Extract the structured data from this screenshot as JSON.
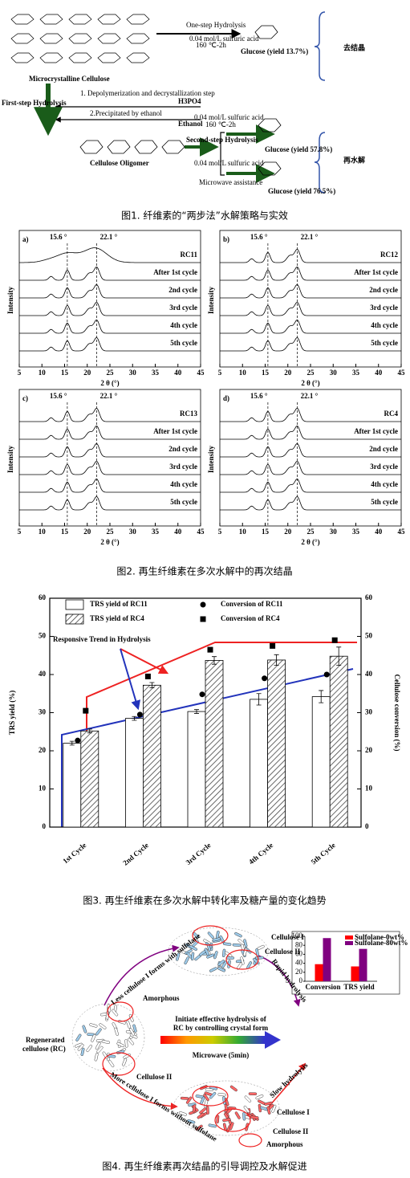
{
  "figure1": {
    "one_step": "One-step Hydrolysis",
    "cond1": "0.04 mol/L sulfuric acid",
    "temp1": "160 ℃-2h",
    "glucose1": "Glucose (yield 13.7%)",
    "tag1": "去结晶",
    "mcc": "Microcrystalline Cellulose",
    "step1": "1. Depolymerization and decrystallization step",
    "h3po4": "H3PO4",
    "step2": "2.Precipitated by ethanol",
    "ethanol": "Ethanol",
    "first_step": "First-step Hydrolysis",
    "oligomer": "Cellulose Oligomer",
    "second_step": "Second-step Hydrolysis",
    "cond2": "0.04 mol/L sulfuric acid",
    "temp2": "160 ℃-2h",
    "glucose2": "Glucose (yield 57.8%)",
    "cond3": "0.04 mol/L sulfuric acid",
    "microwave": "Microwave assistance",
    "glucose3": "Glucose (yield 76.5%)",
    "tag2": "再水解",
    "caption": "图1. 纤维素的“两步法”水解策略与实效"
  },
  "figure2": {
    "xlabel": "2 θ (°)",
    "ylabel": "Intensity",
    "xlim": [
      5,
      45
    ],
    "xticks": [
      5,
      10,
      15,
      20,
      25,
      30,
      35,
      40,
      45
    ],
    "peaks": [
      {
        "value": 15.6,
        "label": "15.6 °"
      },
      {
        "value": 22.1,
        "label": "22.1 °"
      }
    ],
    "panels": [
      {
        "label": "a)",
        "samples": [
          "RC11",
          "After 1st cycle",
          "2nd cycle",
          "3rd cycle",
          "4th cycle",
          "5th cycle"
        ]
      },
      {
        "label": "b)",
        "samples": [
          "RC12",
          "After 1st cycle",
          "2nd cycle",
          "3rd cycle",
          "4th cycle",
          "5th cycle"
        ]
      },
      {
        "label": "c)",
        "samples": [
          "RC13",
          "After 1st cycle",
          "2nd cycle",
          "3rd cycle",
          "4th cycle",
          "5th cycle"
        ]
      },
      {
        "label": "d)",
        "samples": [
          "RC4",
          "After 1st cycle",
          "2nd cycle",
          "3rd cycle",
          "4th cycle",
          "5th cycle"
        ]
      }
    ],
    "caption": "图2. 再生纤维素在多次水解中的再次结晶"
  },
  "chart_data": [
    {
      "type": "bar",
      "annotation": "Responsive Trend in Hydrolysis",
      "ylabel": "TRS yield (%)",
      "y2label": "Cellulose conversion (%)",
      "categories": [
        "1st Cycle",
        "2nd Cycle",
        "3rd Cycle",
        "4th Cycle",
        "5th Cycle"
      ],
      "series": [
        {
          "name": "TRS yield of RC11",
          "color": "#ffffff",
          "values": [
            22,
            28.5,
            30.3,
            33.5,
            34.2
          ],
          "errors": [
            0.5,
            0.5,
            0.5,
            1.5,
            1.6
          ]
        },
        {
          "name": "TRS yield of RC4",
          "color": "#888888",
          "values": [
            25.2,
            37.2,
            43.7,
            43.8,
            44.8
          ],
          "errors": [
            0.5,
            0.7,
            1,
            1.4,
            2.4
          ]
        },
        {
          "name": "Conversion of RC11",
          "color": "#000000",
          "marker": "circle",
          "axis": "y2",
          "values": [
            22.7,
            29.5,
            34.8,
            39,
            40
          ]
        },
        {
          "name": "Conversion of RC4",
          "color": "#000000",
          "marker": "square",
          "axis": "y2",
          "values": [
            30.5,
            39.5,
            46.5,
            47.5,
            49
          ]
        }
      ],
      "ylim": [
        0,
        60
      ],
      "yticks": [
        0,
        10,
        20,
        30,
        40,
        50,
        60
      ],
      "y2lim": [
        0,
        60
      ],
      "y2ticks": [
        0,
        10,
        20,
        30,
        40,
        50,
        60
      ]
    },
    {
      "type": "bar",
      "categories": [
        "Conversion",
        "TRS yield"
      ],
      "series": [
        {
          "name": "Sulfolane-0wt%",
          "color": "#ff0000",
          "values": [
            38,
            33
          ]
        },
        {
          "name": "Sulfolane-80wt%",
          "color": "#800080",
          "values": [
            96,
            72
          ]
        }
      ],
      "ylim": [
        0,
        100
      ],
      "yticks": [
        0,
        20,
        40,
        60,
        80,
        100
      ]
    }
  ],
  "figure3": {
    "caption": "图3. 再生纤维素在多次水解中转化率及糖产量的变化趋势"
  },
  "figure4": {
    "cellulose_i_top": "Cellulose I",
    "cellulose_ii_top": "Cellulose II",
    "less": "Less cellulose I forms with sulfolane",
    "rapid": "Rapid hydrolysis",
    "amorphous_left": "Amorphous",
    "rc": [
      "Regenerated",
      "cellulose (RC)"
    ],
    "initiate": [
      "Initiate effective hydrolysis of",
      "RC by controlling crystal form"
    ],
    "microwave": "Microwave (5min)",
    "cellulose_ii_left": "Cellulose II",
    "more": "More cellulose I forms without sulfolane",
    "slow": "Slow hydrolysis",
    "cellulose_i_bottom": "Cellulose I",
    "cellulose_ii_bottom": "Cellulose II",
    "amorphous_bottom": "Amorphous",
    "caption": "图4. 再生纤维素再次结晶的引导调控及水解促进"
  }
}
